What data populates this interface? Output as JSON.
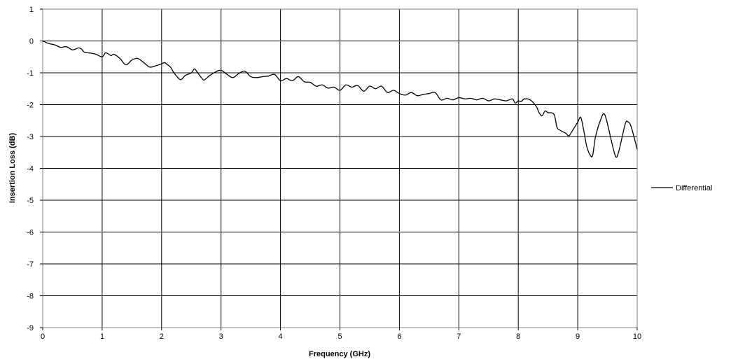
{
  "chart_data": {
    "type": "line",
    "title": "",
    "xlabel": "Frequency (GHz)",
    "ylabel": "Insertion Loss (dB)",
    "xlim": [
      0,
      10
    ],
    "ylim": [
      -9,
      1
    ],
    "xticks": [
      0,
      1,
      2,
      3,
      4,
      5,
      6,
      7,
      8,
      9,
      10
    ],
    "yticks": [
      1,
      0,
      -1,
      -2,
      -3,
      -4,
      -5,
      -6,
      -7,
      -8,
      -9
    ],
    "grid": true,
    "legend_position": "right",
    "series": [
      {
        "name": "Differential",
        "color": "#000000",
        "x": [
          0,
          0.1,
          0.2,
          0.3,
          0.4,
          0.5,
          0.6,
          0.65,
          0.7,
          0.8,
          0.9,
          1.0,
          1.05,
          1.1,
          1.15,
          1.2,
          1.3,
          1.4,
          1.5,
          1.6,
          1.7,
          1.8,
          1.9,
          2.0,
          2.05,
          2.1,
          2.15,
          2.2,
          2.3,
          2.35,
          2.4,
          2.5,
          2.55,
          2.6,
          2.7,
          2.75,
          2.8,
          2.9,
          3.0,
          3.1,
          3.2,
          3.3,
          3.4,
          3.5,
          3.6,
          3.7,
          3.8,
          3.9,
          4.0,
          4.1,
          4.2,
          4.3,
          4.4,
          4.5,
          4.6,
          4.7,
          4.8,
          4.9,
          5.0,
          5.1,
          5.2,
          5.3,
          5.4,
          5.5,
          5.6,
          5.7,
          5.8,
          5.9,
          6.0,
          6.1,
          6.2,
          6.3,
          6.4,
          6.5,
          6.6,
          6.7,
          6.8,
          6.9,
          7.0,
          7.1,
          7.2,
          7.3,
          7.4,
          7.5,
          7.6,
          7.7,
          7.8,
          7.9,
          7.95,
          8.0,
          8.05,
          8.1,
          8.2,
          8.3,
          8.35,
          8.4,
          8.45,
          8.5,
          8.6,
          8.65,
          8.7,
          8.8,
          8.85,
          8.9,
          9.0,
          9.05,
          9.1,
          9.15,
          9.2,
          9.25,
          9.3,
          9.4,
          9.45,
          9.5,
          9.6,
          9.65,
          9.7,
          9.8,
          9.85,
          9.9,
          10.0
        ],
        "y": [
          0,
          -0.08,
          -0.12,
          -0.2,
          -0.18,
          -0.28,
          -0.22,
          -0.25,
          -0.35,
          -0.38,
          -0.42,
          -0.5,
          -0.38,
          -0.4,
          -0.46,
          -0.42,
          -0.55,
          -0.75,
          -0.6,
          -0.55,
          -0.68,
          -0.82,
          -0.78,
          -0.72,
          -0.68,
          -0.75,
          -0.82,
          -0.98,
          -1.2,
          -1.18,
          -1.08,
          -1.0,
          -0.88,
          -0.98,
          -1.22,
          -1.18,
          -1.1,
          -0.98,
          -0.92,
          -1.05,
          -1.15,
          -1.02,
          -0.95,
          -1.12,
          -1.15,
          -1.12,
          -1.1,
          -1.05,
          -1.25,
          -1.18,
          -1.25,
          -1.12,
          -1.28,
          -1.3,
          -1.42,
          -1.38,
          -1.48,
          -1.45,
          -1.55,
          -1.38,
          -1.45,
          -1.4,
          -1.58,
          -1.42,
          -1.5,
          -1.42,
          -1.62,
          -1.55,
          -1.65,
          -1.7,
          -1.62,
          -1.72,
          -1.68,
          -1.65,
          -1.62,
          -1.85,
          -1.8,
          -1.85,
          -1.78,
          -1.82,
          -1.8,
          -1.85,
          -1.8,
          -1.88,
          -1.82,
          -1.85,
          -1.88,
          -1.82,
          -1.95,
          -1.88,
          -1.9,
          -1.82,
          -1.85,
          -2.05,
          -2.25,
          -2.35,
          -2.2,
          -2.25,
          -2.3,
          -2.7,
          -2.8,
          -2.9,
          -2.98,
          -2.85,
          -2.55,
          -2.4,
          -2.8,
          -3.3,
          -3.55,
          -3.6,
          -3.0,
          -2.4,
          -2.3,
          -2.6,
          -3.4,
          -3.65,
          -3.4,
          -2.6,
          -2.55,
          -2.7,
          -3.4
        ]
      }
    ]
  }
}
